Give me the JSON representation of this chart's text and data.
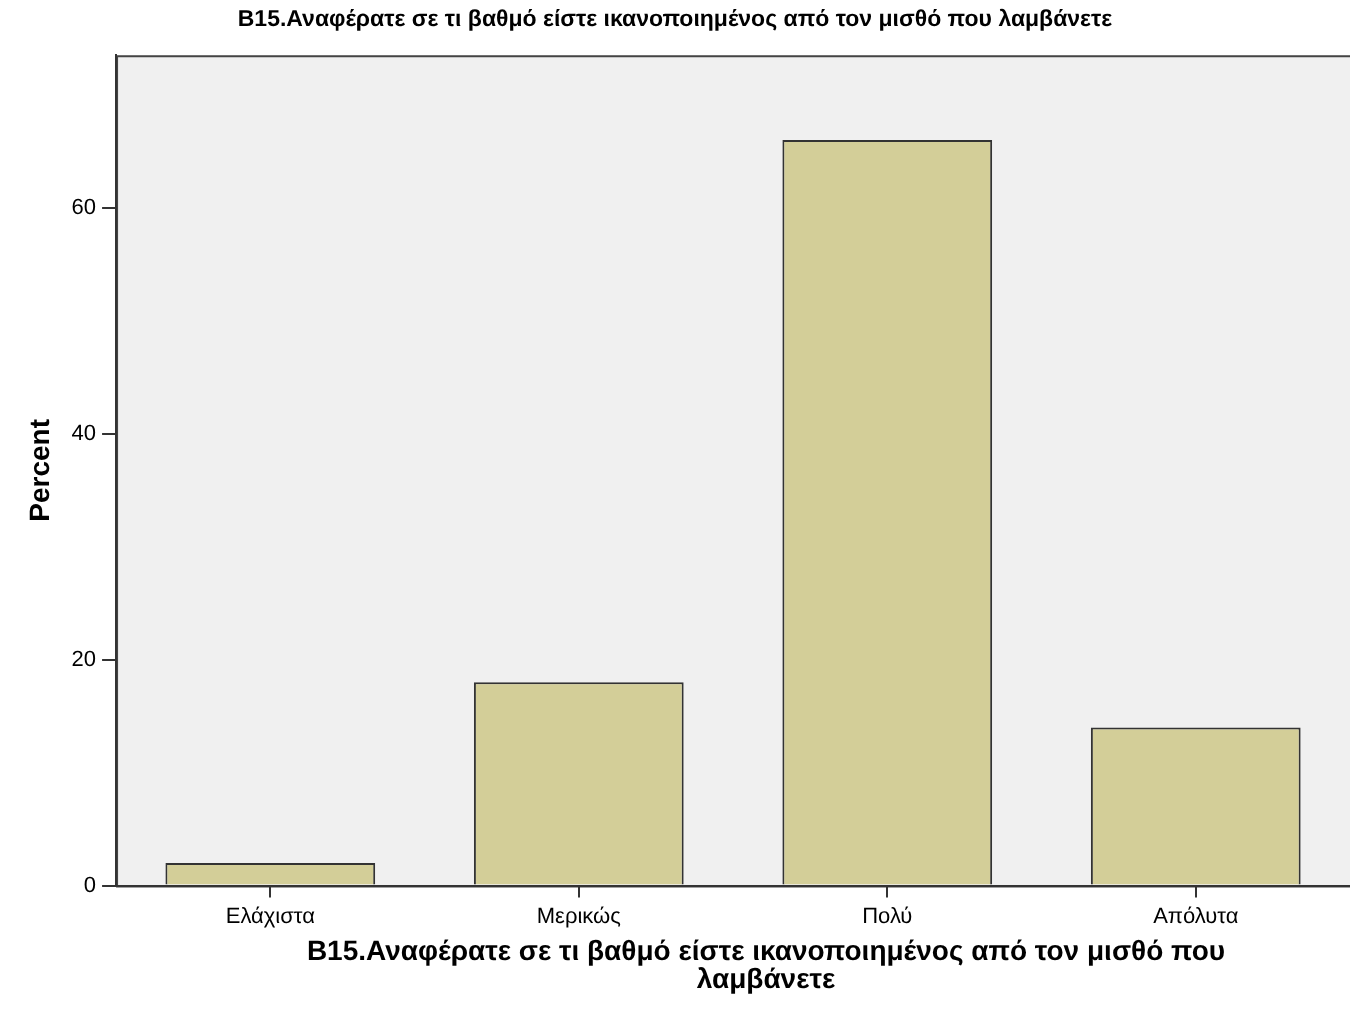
{
  "chart_data": {
    "type": "bar",
    "title": "B15.Αναφέρατε σε τι βαθμό είστε ικανοποιημένος από τον μισθό που λαμβάνετε",
    "xlabel": "B15.Αναφέρατε σε τι βαθμό είστε ικανοποιημένος από τον μισθό που λαμβάνετε",
    "ylabel": "Percent",
    "categories": [
      "Ελάχιστα",
      "Μερικώς",
      "Πολύ",
      "Απόλυτα"
    ],
    "values": [
      2,
      18,
      66,
      14
    ],
    "color": "#d3ce98",
    "ylim": [
      0,
      73.5
    ],
    "yticks": [
      0,
      20,
      40,
      60
    ],
    "grid": false
  }
}
